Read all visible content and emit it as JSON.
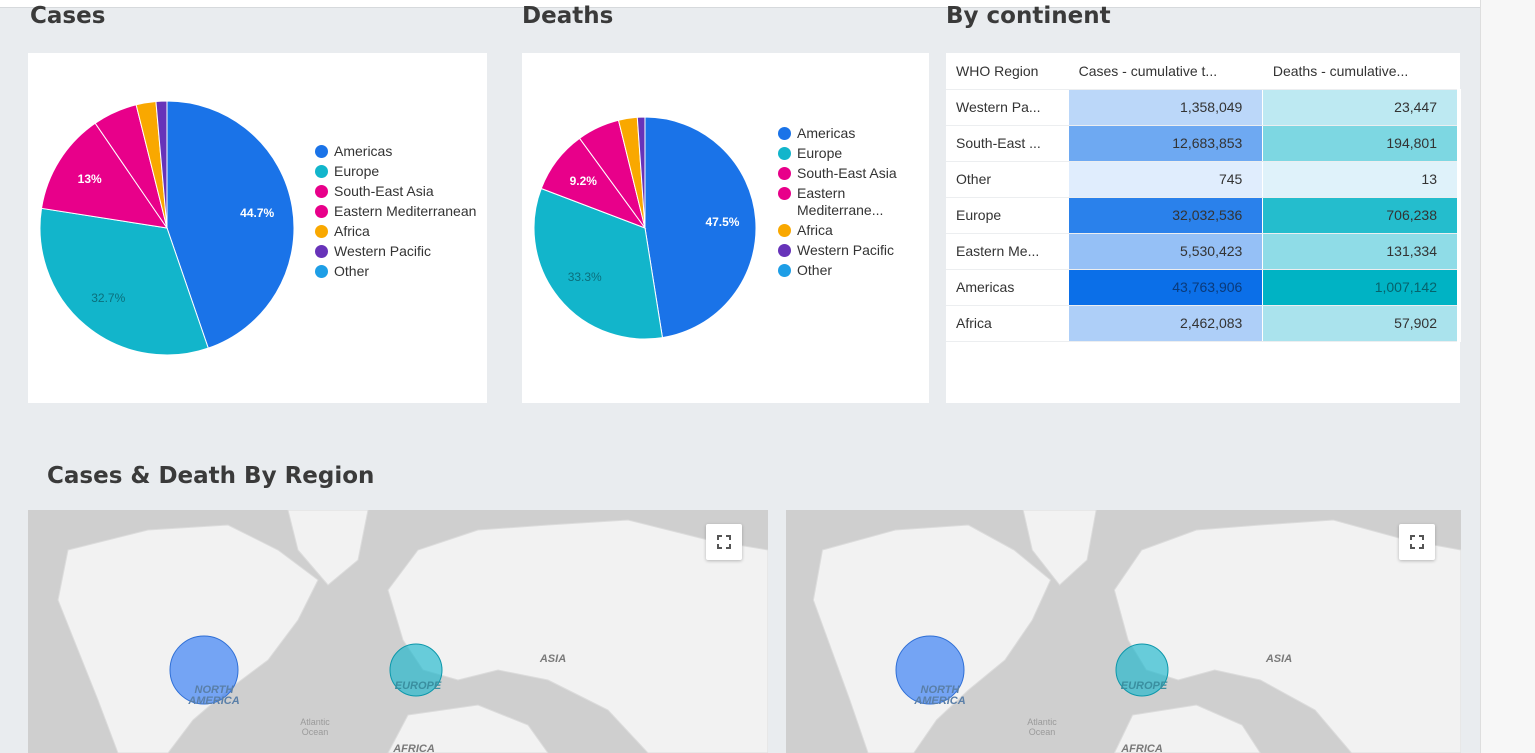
{
  "sections": {
    "cases_title": "Cases",
    "deaths_title": "Deaths",
    "continent_title": "By continent",
    "region_title": "Cases & Death By Region"
  },
  "colors": {
    "Americas": "#1a73e8",
    "Europe": "#12b5cb",
    "South-East Asia": "#e8008a",
    "Eastern Mediterranean": "#e8008a",
    "Africa": "#f9a800",
    "Western Pacific": "#6733b9",
    "Other": "#1e9ee6"
  },
  "cases_legend": [
    "Americas",
    "Europe",
    "South-East Asia",
    "Eastern Mediterranean",
    "Africa",
    "Western Pacific",
    "Other"
  ],
  "deaths_legend": [
    "Americas",
    "Europe",
    "South-East Asia",
    "Eastern Mediterrane...",
    "Africa",
    "Western Pacific",
    "Other"
  ],
  "chart_data": [
    {
      "type": "pie",
      "title": "Cases",
      "series": [
        {
          "name": "Americas",
          "value": 43763906,
          "label": "44.7%"
        },
        {
          "name": "Europe",
          "value": 32032536,
          "label": "32.7%"
        },
        {
          "name": "South-East Asia",
          "value": 12683853,
          "label": "13%"
        },
        {
          "name": "Eastern Mediterranean",
          "value": 5530423,
          "label": ""
        },
        {
          "name": "Africa",
          "value": 2462083,
          "label": ""
        },
        {
          "name": "Western Pacific",
          "value": 1358049,
          "label": ""
        },
        {
          "name": "Other",
          "value": 745,
          "label": ""
        }
      ]
    },
    {
      "type": "pie",
      "title": "Deaths",
      "series": [
        {
          "name": "Americas",
          "value": 1007142,
          "label": "47.5%"
        },
        {
          "name": "Europe",
          "value": 706238,
          "label": "33.3%"
        },
        {
          "name": "South-East Asia",
          "value": 194801,
          "label": "9.2%"
        },
        {
          "name": "Eastern Mediterranean",
          "value": 131334,
          "label": ""
        },
        {
          "name": "Africa",
          "value": 57902,
          "label": ""
        },
        {
          "name": "Western Pacific",
          "value": 23447,
          "label": ""
        },
        {
          "name": "Other",
          "value": 13,
          "label": ""
        }
      ]
    },
    {
      "type": "table",
      "title": "By continent",
      "columns": [
        "WHO Region",
        "Cases - cumulative t...",
        "Deaths - cumulative..."
      ],
      "rows": [
        {
          "region": "Western Pa...",
          "cases": "1,358,049",
          "deaths": "23,447",
          "cases_num": 1358049,
          "deaths_num": 23447
        },
        {
          "region": "South-East ...",
          "cases": "12,683,853",
          "deaths": "194,801",
          "cases_num": 12683853,
          "deaths_num": 194801
        },
        {
          "region": "Other",
          "cases": "745",
          "deaths": "13",
          "cases_num": 745,
          "deaths_num": 13
        },
        {
          "region": "Europe",
          "cases": "32,032,536",
          "deaths": "706,238",
          "cases_num": 32032536,
          "deaths_num": 706238
        },
        {
          "region": "Eastern Me...",
          "cases": "5,530,423",
          "deaths": "131,334",
          "cases_num": 5530423,
          "deaths_num": 131334
        },
        {
          "region": "Americas",
          "cases": "43,763,906",
          "deaths": "1,007,142",
          "cases_num": 43763906,
          "deaths_num": 1007142
        },
        {
          "region": "Africa",
          "cases": "2,462,083",
          "deaths": "57,902",
          "cases_num": 2462083,
          "deaths_num": 57902
        }
      ]
    }
  ],
  "maps": [
    {
      "labels": {
        "north_america": "NORTH AMERICA",
        "europe": "EUROPE",
        "asia": "ASIA",
        "atlantic": "Atlantic Ocean",
        "africa": "AFRICA"
      }
    },
    {
      "labels": {
        "north_america": "NORTH AMERICA",
        "europe": "EUROPE",
        "asia": "ASIA",
        "atlantic": "Atlantic Ocean",
        "africa": "AFRICA"
      }
    }
  ]
}
